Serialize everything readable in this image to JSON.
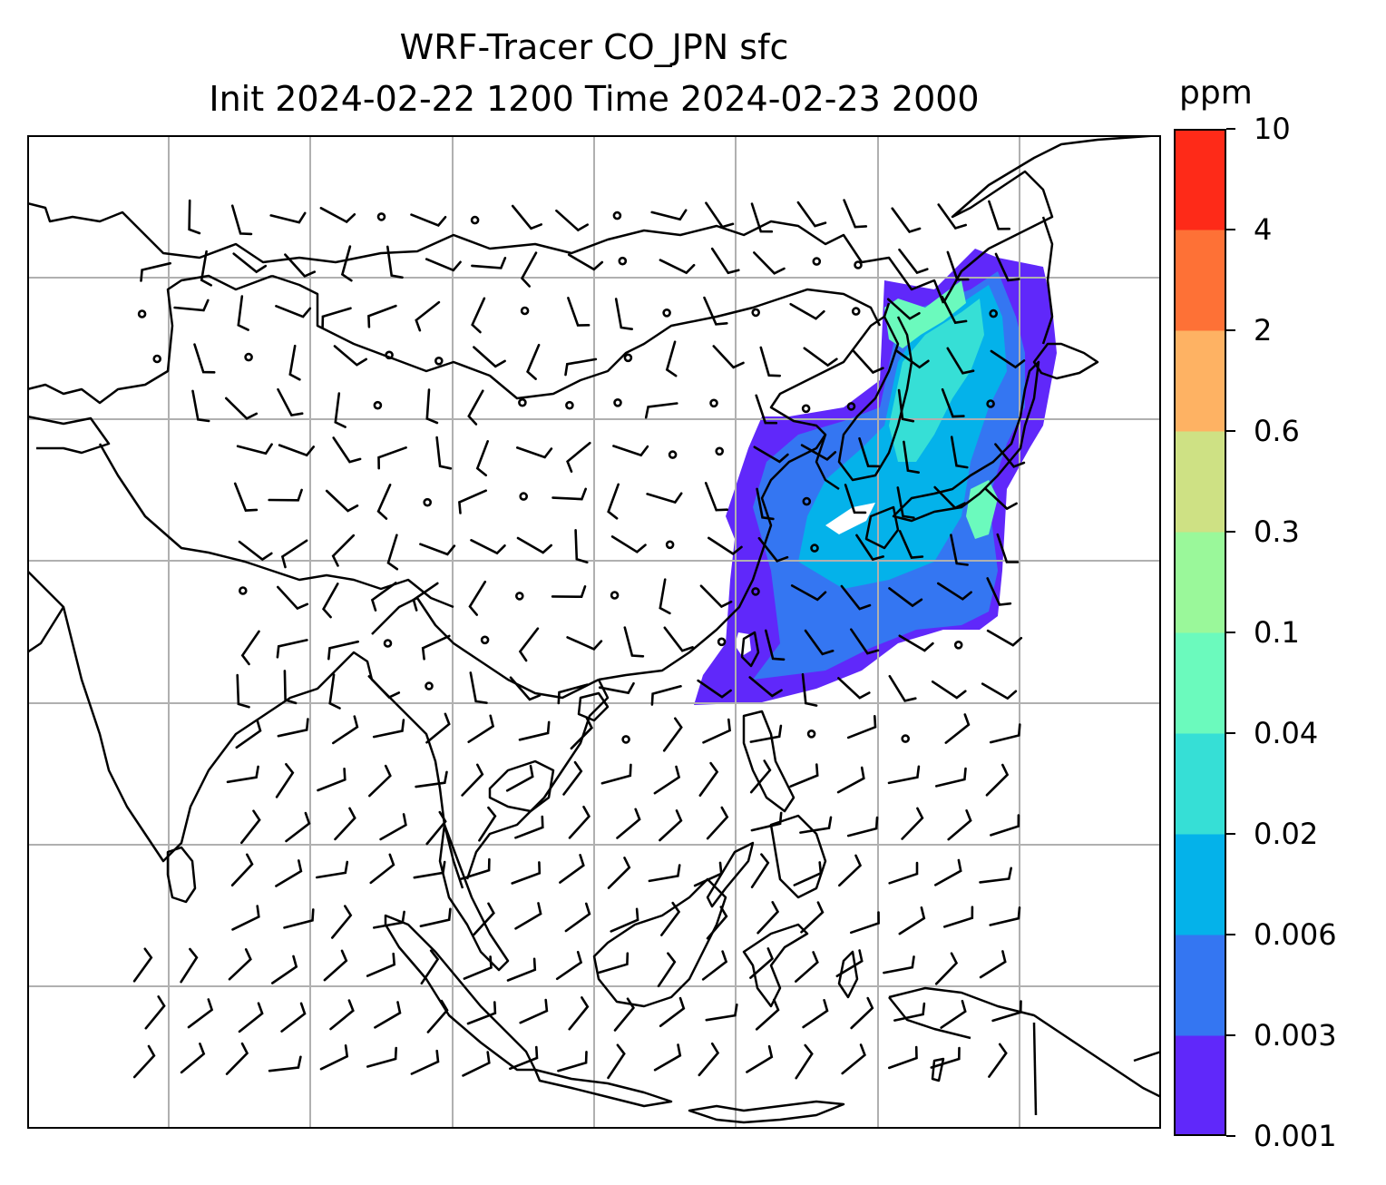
{
  "title": {
    "line1": "WRF-Tracer CO_JPN sfc",
    "line2": "Init 2024-02-22 1200 Time 2024-02-23 2000"
  },
  "colorbar": {
    "unit": "ppm",
    "levels": [
      "0.001",
      "0.003",
      "0.006",
      "0.02",
      "0.04",
      "0.1",
      "0.3",
      "0.6",
      "2",
      "4",
      "10"
    ],
    "colors": [
      "#6028fa",
      "#3476f2",
      "#04b2ea",
      "#36dfd6",
      "#6bfabd",
      "#9af89a",
      "#cee184",
      "#feb263",
      "#fe7136",
      "#fe2a18"
    ]
  },
  "map": {
    "grid_color": "#b0b0b0",
    "coast_color": "#000000",
    "barb_color": "#000000"
  },
  "chart_data": {
    "type": "map",
    "title": "WRF-Tracer CO_JPN sfc\nInit 2024-02-22 1200 Time 2024-02-23 2000",
    "field": "CO tracer concentration (surface)",
    "unit": "ppm",
    "colorbar_levels": [
      0.001,
      0.003,
      0.006,
      0.02,
      0.04,
      0.1,
      0.3,
      0.6,
      2,
      4,
      10
    ],
    "overlay": "wind barbs",
    "grid": true
  }
}
